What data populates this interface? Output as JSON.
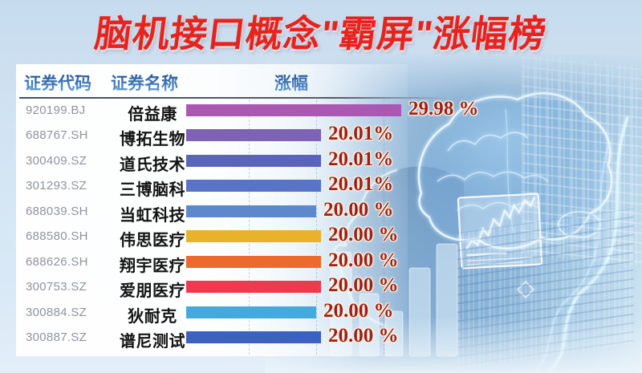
{
  "title": "脑机接口概念\"霸屏\"涨幅榜",
  "table": {
    "headers": {
      "code": "证券代码",
      "name": "证券名称",
      "change": "涨幅"
    },
    "rows": [
      {
        "code": "920199.BJ",
        "name": "倍益康",
        "pct_label": "29.98 %",
        "value": 29.98,
        "bar_color": "#aa58b2",
        "bar_len": 268
      },
      {
        "code": "688767.SH",
        "name": "博拓生物",
        "pct_label": "20.01%",
        "value": 20.01,
        "bar_color": "#7d62b6",
        "bar_len": 168
      },
      {
        "code": "300409.SZ",
        "name": "道氏技术",
        "pct_label": "20.01%",
        "value": 20.01,
        "bar_color": "#5a64bd",
        "bar_len": 168
      },
      {
        "code": "301293.SZ",
        "name": "三博脑科",
        "pct_label": "20.01%",
        "value": 20.01,
        "bar_color": "#5873c8",
        "bar_len": 168
      },
      {
        "code": "688039.SH",
        "name": "当虹科技",
        "pct_label": "20.00 %",
        "value": 20.0,
        "bar_color": "#5d89cc",
        "bar_len": 162
      },
      {
        "code": "688580.SH",
        "name": "伟思医疗",
        "pct_label": "20.00 %",
        "value": 20.0,
        "bar_color": "#e9b22b",
        "bar_len": 168
      },
      {
        "code": "688626.SH",
        "name": "翔宇医疗",
        "pct_label": "20.00 %",
        "value": 20.0,
        "bar_color": "#ed6a2e",
        "bar_len": 168
      },
      {
        "code": "300753.SZ",
        "name": "爱朋医疗",
        "pct_label": "20.00 %",
        "value": 20.0,
        "bar_color": "#ee3a4f",
        "bar_len": 168
      },
      {
        "code": "300884.SZ",
        "name": "狄耐克",
        "pct_label": "20.00 %",
        "value": 20.0,
        "bar_color": "#44aadd",
        "bar_len": 162
      },
      {
        "code": "300887.SZ",
        "name": "谱尼测试",
        "pct_label": "20.00 %",
        "value": 20.0,
        "bar_color": "#3b62c0",
        "bar_len": 168
      }
    ]
  },
  "chart_data": {
    "type": "bar",
    "title": "脑机接口概念\"霸屏\"涨幅榜",
    "categories": [
      "倍益康",
      "博拓生物",
      "道氏技术",
      "三博脑科",
      "当虹科技",
      "伟思医疗",
      "翔宇医疗",
      "爱朋医疗",
      "狄耐克",
      "谱尼测试"
    ],
    "codes": [
      "920199.BJ",
      "688767.SH",
      "300409.SZ",
      "301293.SZ",
      "688039.SH",
      "688580.SH",
      "688626.SH",
      "300753.SZ",
      "300884.SZ",
      "300887.SZ"
    ],
    "values": [
      29.98,
      20.01,
      20.01,
      20.01,
      20.0,
      20.0,
      20.0,
      20.0,
      20.0,
      20.0
    ],
    "value_labels": [
      "29.98 %",
      "20.01%",
      "20.01%",
      "20.01%",
      "20.00 %",
      "20.00 %",
      "20.00 %",
      "20.00 %",
      "20.00 %",
      "20.00 %"
    ],
    "bar_colors": [
      "#aa58b2",
      "#7d62b6",
      "#5a64bd",
      "#5873c8",
      "#5d89cc",
      "#e9b22b",
      "#ed6a2e",
      "#ee3a4f",
      "#44aadd",
      "#3b62c0"
    ],
    "xlabel": "涨幅",
    "ylabel": "",
    "xlim": [
      0,
      30
    ],
    "orientation": "horizontal",
    "grid": "dashed-vertical",
    "legend": "none"
  },
  "colors": {
    "title_red": "#e8231e",
    "header_blue": "#2e6fb8",
    "percent_red": "#9d1f1c",
    "code_gray": "#8e949d",
    "name_black": "#141414",
    "page_bg": "#d3e5f3"
  }
}
